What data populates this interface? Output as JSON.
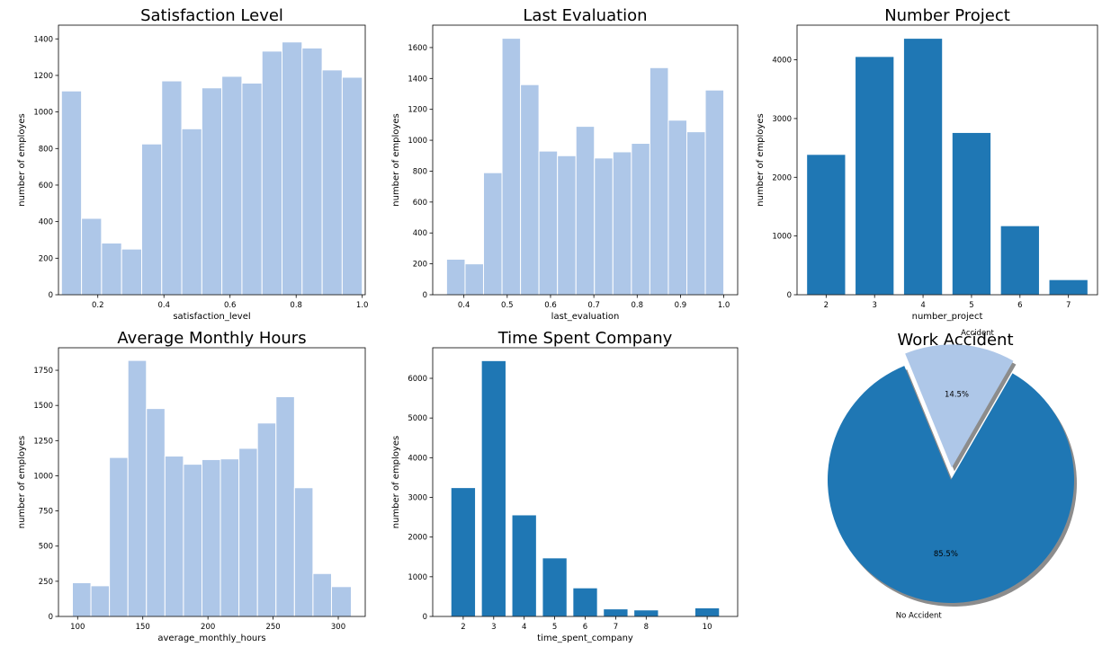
{
  "colors": {
    "light": "#aec7e8",
    "dark": "#1f77b4"
  },
  "chart_data": [
    {
      "type": "bar",
      "title": "Satisfaction Level",
      "xlabel": "satisfaction_level",
      "ylabel": "number of employes",
      "color": "#aec7e8",
      "bin_edges": [
        0.09,
        0.1507,
        0.2113,
        0.272,
        0.3327,
        0.3933,
        0.454,
        0.5147,
        0.5753,
        0.636,
        0.6967,
        0.7573,
        0.818,
        0.8787,
        0.9393,
        1.0
      ],
      "values": [
        1115,
        418,
        283,
        250,
        825,
        1170,
        908,
        1132,
        1195,
        1158,
        1333,
        1383,
        1350,
        1230,
        1190
      ],
      "xlim": [
        0.081,
        1.009
      ],
      "ylim": [
        0,
        1475
      ],
      "xticks": [
        0.2,
        0.4,
        0.6,
        0.8,
        1.0
      ],
      "xticklabels": [
        "0.2",
        "0.4",
        "0.6",
        "0.8",
        "1.0"
      ],
      "yticks": [
        0,
        200,
        400,
        600,
        800,
        1000,
        1200,
        1400
      ],
      "yticklabels": [
        "0",
        "200",
        "400",
        "600",
        "800",
        "1000",
        "1200",
        "1400"
      ]
    },
    {
      "type": "bar",
      "title": "Last Evaluation",
      "xlabel": "last_evaluation",
      "ylabel": "number of employes",
      "color": "#aec7e8",
      "bin_edges": [
        0.36,
        0.4027,
        0.4453,
        0.488,
        0.5307,
        0.5733,
        0.616,
        0.6587,
        0.7013,
        0.744,
        0.7867,
        0.8293,
        0.872,
        0.9147,
        0.9573,
        1.0
      ],
      "values": [
        230,
        200,
        790,
        1660,
        1360,
        930,
        900,
        1090,
        885,
        925,
        980,
        1470,
        1130,
        1055,
        1325
      ],
      "xlim": [
        0.328,
        1.032
      ],
      "ylim": [
        0,
        1745
      ],
      "xticks": [
        0.4,
        0.5,
        0.6,
        0.7,
        0.8,
        0.9,
        1.0
      ],
      "xticklabels": [
        "0.4",
        "0.5",
        "0.6",
        "0.7",
        "0.8",
        "0.9",
        "1.0"
      ],
      "yticks": [
        0,
        200,
        400,
        600,
        800,
        1000,
        1200,
        1400,
        1600
      ],
      "yticklabels": [
        "0",
        "200",
        "400",
        "600",
        "800",
        "1000",
        "1200",
        "1400",
        "1600"
      ]
    },
    {
      "type": "bar",
      "title": "Number Project",
      "xlabel": "number_project",
      "ylabel": "number of employes",
      "color": "#1f77b4",
      "categories": [
        2,
        3,
        4,
        5,
        6,
        7
      ],
      "values": [
        2388,
        4055,
        4365,
        2761,
        1174,
        256
      ],
      "xlim": [
        1.4,
        7.6
      ],
      "ylim": [
        0,
        4590
      ],
      "xticks": [
        2,
        3,
        4,
        5,
        6,
        7
      ],
      "xticklabels": [
        "2",
        "3",
        "4",
        "5",
        "6",
        "7"
      ],
      "yticks": [
        0,
        1000,
        2000,
        3000,
        4000
      ],
      "yticklabels": [
        "0",
        "1000",
        "2000",
        "3000",
        "4000"
      ]
    },
    {
      "type": "bar",
      "title": "Average Monthly Hours",
      "xlabel": "average_monthly_hours",
      "ylabel": "number of employes",
      "color": "#aec7e8",
      "bin_edges": [
        96,
        110.2,
        124.4,
        138.6,
        152.8,
        167,
        181.2,
        195.4,
        209.6,
        223.8,
        238,
        252.2,
        266.4,
        280.6,
        294.8,
        310
      ],
      "values": [
        240,
        218,
        1130,
        1820,
        1478,
        1140,
        1082,
        1115,
        1120,
        1195,
        1375,
        1562,
        915,
        305,
        212
      ],
      "xlim": [
        85.3,
        320.7
      ],
      "ylim": [
        0,
        1910
      ],
      "xticks": [
        100,
        150,
        200,
        250,
        300
      ],
      "xticklabels": [
        "100",
        "150",
        "200",
        "250",
        "300"
      ],
      "yticks": [
        0,
        250,
        500,
        750,
        1000,
        1250,
        1500,
        1750
      ],
      "yticklabels": [
        "0",
        "250",
        "500",
        "750",
        "1000",
        "1250",
        "1500",
        "1750"
      ]
    },
    {
      "type": "bar",
      "title": "Time Spent Company",
      "xlabel": "time_spent_company",
      "ylabel": "number of employes",
      "color": "#1f77b4",
      "categories": [
        2,
        3,
        4,
        5,
        6,
        7,
        8,
        10
      ],
      "values": [
        3244,
        6443,
        2557,
        1473,
        718,
        188,
        162,
        214
      ],
      "xlim": [
        1.0,
        11.0
      ],
      "ylim": [
        0,
        6770
      ],
      "xticks": [
        2,
        3,
        4,
        5,
        6,
        7,
        8,
        10
      ],
      "xticklabels": [
        "2",
        "3",
        "4",
        "5",
        "6",
        "7",
        "8",
        "10"
      ],
      "yticks": [
        0,
        1000,
        2000,
        3000,
        4000,
        5000,
        6000
      ],
      "yticklabels": [
        "0",
        "1000",
        "2000",
        "3000",
        "4000",
        "5000",
        "6000"
      ]
    },
    {
      "type": "pie",
      "title": "Work Accident",
      "labels": [
        "Accident",
        "No Accident"
      ],
      "values": [
        14.5,
        85.5
      ],
      "autopct": [
        "14.5%",
        "85.5%"
      ],
      "colors": [
        "#aec7e8",
        "#1f77b4"
      ],
      "explode": [
        0.1,
        0
      ],
      "shadow": true,
      "startangle": 60
    }
  ]
}
